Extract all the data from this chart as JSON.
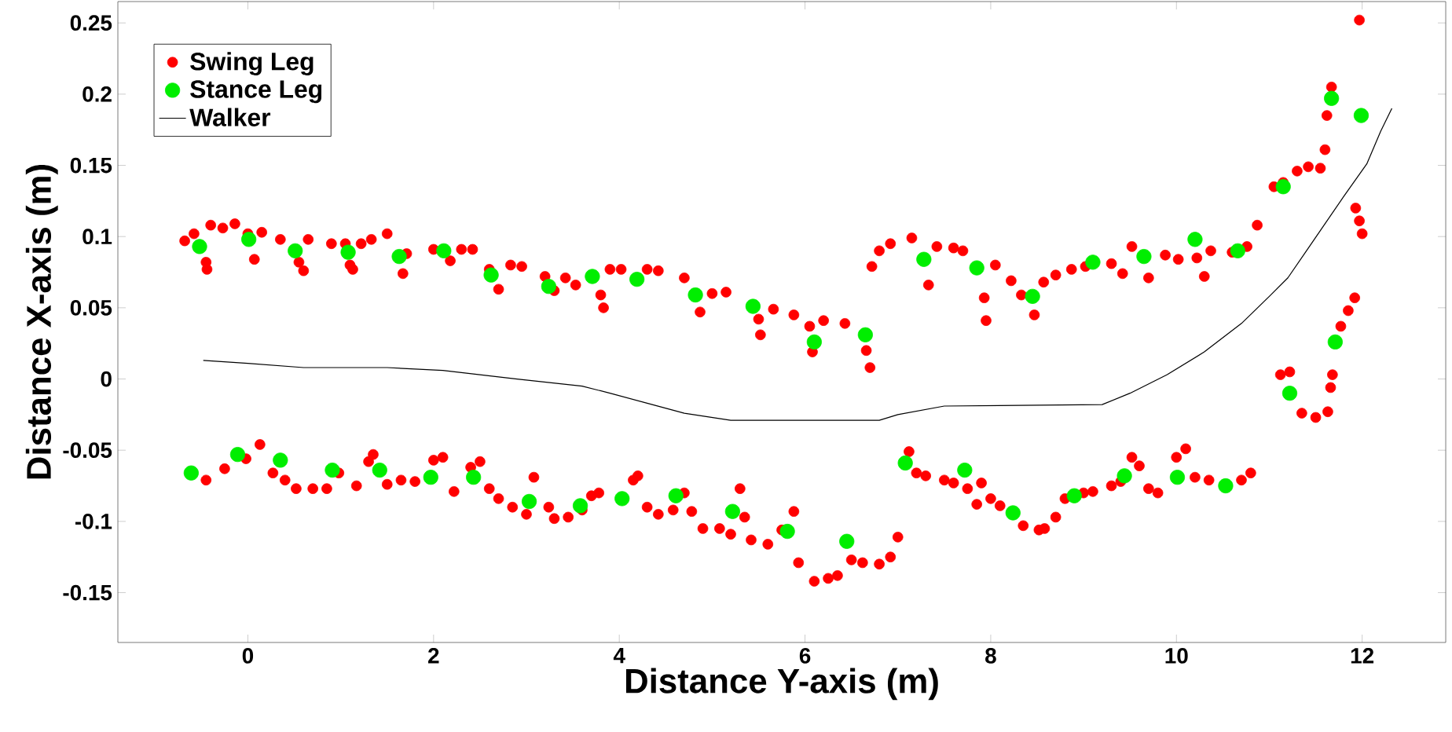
{
  "chart_data": {
    "type": "scatter",
    "xlabel": "Distance Y-axis (m)",
    "ylabel": "Distance X-axis (m)",
    "xlim": [
      -1.4,
      12.9
    ],
    "ylim": [
      -0.185,
      0.265
    ],
    "xticks": [
      0,
      2,
      4,
      6,
      8,
      10,
      12
    ],
    "yticks": [
      -0.15,
      -0.1,
      -0.05,
      0,
      0.05,
      0.1,
      0.15,
      0.2,
      0.25
    ],
    "grid": false,
    "legend": "top left",
    "series": [
      {
        "name": "Swing Leg",
        "marker": "circle",
        "color": "#ff0000",
        "x": [
          -0.68,
          -0.58,
          -0.45,
          -0.44,
          -0.4,
          -0.27,
          -0.14,
          0.0,
          0.07,
          0.15,
          0.35,
          0.55,
          0.6,
          0.65,
          0.9,
          1.05,
          1.1,
          1.13,
          1.22,
          1.33,
          1.5,
          1.67,
          1.71,
          2.0,
          2.18,
          2.3,
          2.42,
          2.6,
          2.7,
          2.83,
          2.95,
          3.2,
          3.3,
          3.42,
          3.53,
          3.8,
          3.83,
          3.9,
          4.02,
          4.3,
          4.42,
          4.7,
          4.87,
          5.0,
          5.15,
          5.5,
          5.52,
          5.66,
          5.88,
          6.05,
          6.08,
          6.2,
          6.43,
          6.66,
          6.7,
          6.72,
          6.8,
          6.92,
          7.15,
          7.33,
          7.42,
          7.6,
          7.7,
          7.93,
          7.95,
          8.05,
          8.22,
          8.33,
          8.47,
          8.57,
          8.7,
          8.87,
          9.02,
          9.3,
          9.42,
          9.52,
          9.7,
          9.88,
          10.02,
          10.22,
          10.3,
          10.37,
          10.6,
          10.76,
          10.87,
          11.05,
          11.15,
          11.3,
          11.42,
          11.55,
          11.6,
          11.62,
          11.67,
          11.97,
          11.93,
          11.97,
          12.0,
          11.12,
          11.22,
          11.35,
          11.5,
          11.63,
          11.66,
          11.68,
          11.77,
          11.85,
          11.92,
          -0.45,
          -0.25,
          -0.02,
          0.13,
          0.27,
          0.4,
          0.52,
          0.7,
          0.85,
          0.98,
          1.17,
          1.3,
          1.35,
          1.5,
          1.65,
          1.8,
          2.0,
          2.1,
          2.22,
          2.4,
          2.5,
          2.6,
          2.7,
          2.85,
          3.0,
          3.08,
          3.24,
          3.3,
          3.45,
          3.6,
          3.7,
          3.78,
          4.15,
          4.2,
          4.3,
          4.42,
          4.58,
          4.7,
          4.78,
          4.9,
          5.08,
          5.2,
          5.3,
          5.35,
          5.42,
          5.6,
          5.75,
          5.88,
          5.93,
          6.1,
          6.25,
          6.35,
          6.5,
          6.62,
          6.8,
          6.92,
          7.0,
          7.12,
          7.2,
          7.3,
          7.5,
          7.6,
          7.75,
          7.85,
          7.9,
          8.0,
          8.1,
          8.35,
          8.52,
          8.58,
          8.7,
          8.8,
          9.0,
          9.1,
          9.3,
          9.4,
          9.52,
          9.6,
          9.7,
          9.8,
          10.0,
          10.1,
          10.2,
          10.35,
          10.7,
          10.8
        ],
        "values": [
          0.097,
          0.102,
          0.082,
          0.077,
          0.108,
          0.106,
          0.109,
          0.102,
          0.084,
          0.103,
          0.098,
          0.082,
          0.076,
          0.098,
          0.095,
          0.095,
          0.08,
          0.077,
          0.095,
          0.098,
          0.102,
          0.074,
          0.088,
          0.091,
          0.083,
          0.091,
          0.091,
          0.077,
          0.063,
          0.08,
          0.079,
          0.072,
          0.062,
          0.071,
          0.066,
          0.059,
          0.05,
          0.077,
          0.077,
          0.077,
          0.076,
          0.071,
          0.047,
          0.06,
          0.061,
          0.042,
          0.031,
          0.049,
          0.045,
          0.037,
          0.019,
          0.041,
          0.039,
          0.02,
          0.008,
          0.079,
          0.09,
          0.095,
          0.099,
          0.066,
          0.093,
          0.092,
          0.09,
          0.057,
          0.041,
          0.08,
          0.069,
          0.059,
          0.045,
          0.068,
          0.073,
          0.077,
          0.079,
          0.081,
          0.074,
          0.093,
          0.071,
          0.087,
          0.084,
          0.085,
          0.072,
          0.09,
          0.089,
          0.093,
          0.108,
          0.135,
          0.138,
          0.146,
          0.149,
          0.148,
          0.161,
          0.185,
          0.205,
          0.252,
          0.12,
          0.111,
          0.102,
          0.003,
          0.005,
          -0.024,
          -0.027,
          -0.023,
          -0.006,
          0.003,
          0.037,
          0.048,
          0.057,
          -0.071,
          -0.063,
          -0.056,
          -0.046,
          -0.066,
          -0.071,
          -0.077,
          -0.077,
          -0.077,
          -0.066,
          -0.075,
          -0.058,
          -0.053,
          -0.074,
          -0.071,
          -0.072,
          -0.057,
          -0.055,
          -0.079,
          -0.062,
          -0.058,
          -0.077,
          -0.084,
          -0.09,
          -0.095,
          -0.069,
          -0.09,
          -0.098,
          -0.097,
          -0.092,
          -0.082,
          -0.08,
          -0.071,
          -0.068,
          -0.09,
          -0.095,
          -0.092,
          -0.08,
          -0.093,
          -0.105,
          -0.105,
          -0.109,
          -0.077,
          -0.097,
          -0.113,
          -0.116,
          -0.106,
          -0.093,
          -0.129,
          -0.142,
          -0.14,
          -0.138,
          -0.127,
          -0.129,
          -0.13,
          -0.125,
          -0.111,
          -0.051,
          -0.066,
          -0.068,
          -0.071,
          -0.073,
          -0.077,
          -0.088,
          -0.073,
          -0.084,
          -0.089,
          -0.103,
          -0.106,
          -0.105,
          -0.097,
          -0.084,
          -0.08,
          -0.079,
          -0.075,
          -0.072,
          -0.055,
          -0.061,
          -0.077,
          -0.08,
          -0.055,
          -0.049,
          -0.069,
          -0.071,
          -0.071,
          -0.066
        ]
      },
      {
        "name": "Stance Leg",
        "marker": "circle",
        "color": "#00ee00",
        "x": [
          -0.52,
          0.01,
          0.51,
          1.08,
          1.63,
          2.11,
          2.62,
          3.24,
          3.71,
          4.19,
          4.82,
          5.44,
          6.1,
          6.65,
          7.28,
          7.85,
          8.45,
          9.1,
          9.65,
          10.2,
          10.66,
          11.15,
          11.67,
          11.99,
          11.22,
          11.71,
          -0.61,
          -0.11,
          0.35,
          0.91,
          1.42,
          1.97,
          2.43,
          3.03,
          3.58,
          4.03,
          4.61,
          5.22,
          5.81,
          6.45,
          7.08,
          7.72,
          8.24,
          8.9,
          9.44,
          10.01,
          10.53
        ],
        "values": [
          0.093,
          0.098,
          0.09,
          0.089,
          0.086,
          0.09,
          0.073,
          0.065,
          0.072,
          0.07,
          0.059,
          0.051,
          0.026,
          0.031,
          0.084,
          0.078,
          0.058,
          0.082,
          0.086,
          0.098,
          0.09,
          0.135,
          0.197,
          0.185,
          -0.01,
          0.026,
          -0.066,
          -0.053,
          -0.057,
          -0.064,
          -0.064,
          -0.069,
          -0.069,
          -0.086,
          -0.089,
          -0.084,
          -0.082,
          -0.093,
          -0.107,
          -0.114,
          -0.059,
          -0.064,
          -0.094,
          -0.082,
          -0.068,
          -0.069,
          -0.075
        ]
      },
      {
        "name": "Walker",
        "type": "line",
        "marker": "none",
        "line_style": "solid",
        "color": "#000000",
        "x": [
          -0.48,
          0.0,
          0.6,
          1.5,
          2.1,
          2.9,
          3.6,
          3.9,
          4.3,
          4.7,
          5.2,
          5.6,
          6.8,
          7.0,
          7.5,
          9.2,
          9.5,
          9.9,
          10.3,
          10.7,
          11.0,
          11.2,
          11.4,
          11.6,
          11.8,
          12.05,
          12.2,
          12.32
        ],
        "values": [
          0.013,
          0.011,
          0.008,
          0.008,
          0.006,
          0.0,
          -0.005,
          -0.01,
          -0.017,
          -0.024,
          -0.029,
          -0.029,
          -0.029,
          -0.025,
          -0.019,
          -0.018,
          -0.01,
          0.003,
          0.019,
          0.039,
          0.058,
          0.071,
          0.09,
          0.109,
          0.128,
          0.151,
          0.174,
          0.19
        ]
      }
    ]
  }
}
